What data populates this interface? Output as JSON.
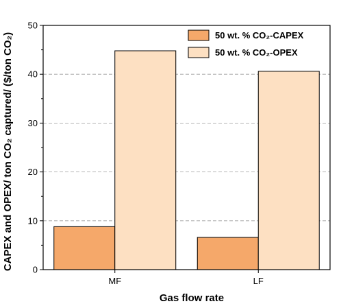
{
  "chart_data": {
    "type": "bar",
    "categories": [
      "MF",
      "LF"
    ],
    "series": [
      {
        "name": "50 wt. % CO₂-CAPEX",
        "values": [
          8.8,
          6.6
        ],
        "color": "#f5a86a"
      },
      {
        "name": "50 wt. % CO₂-OPEX",
        "values": [
          44.8,
          40.6
        ],
        "color": "#fde0c2"
      }
    ],
    "xlabel": "Gas flow rate",
    "ylabel": "CAPEX and OPEX/ ton CO₂ captured/ ($/ton CO₂)",
    "ylim": [
      0,
      50
    ],
    "yticks": [
      0,
      10,
      20,
      30,
      40,
      50
    ],
    "grid": "horizontal dashed",
    "legend_position": "top-right"
  }
}
